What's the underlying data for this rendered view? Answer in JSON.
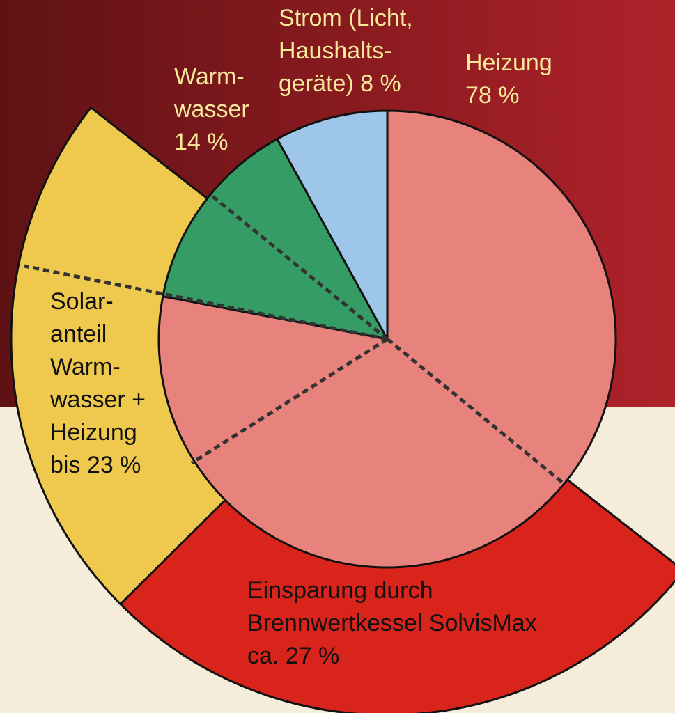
{
  "chart_data": {
    "type": "pie",
    "series": [
      {
        "name": "inner",
        "labels": [
          [
            "Heizung",
            "78 %"
          ],
          [
            "Warm-",
            "wasser",
            "14 %"
          ],
          [
            "Strom (Licht,",
            "Haushalts-",
            "geräte) 8 %"
          ]
        ],
        "values": [
          78,
          14,
          8
        ],
        "colors": [
          "#e8827c",
          "#359c65",
          "#9dc6e8"
        ]
      },
      {
        "name": "outer",
        "labels": [
          [
            "Einsparung durch",
            "Brennwertkessel SolvisMax",
            "ca. 27 %"
          ],
          [
            "Solar-",
            "anteil",
            "Warm-",
            "wasser +",
            "Heizung",
            "bis 23 %"
          ]
        ],
        "values": [
          27,
          23
        ],
        "colors": [
          "#d9241c",
          "#efc94e"
        ]
      }
    ]
  }
}
